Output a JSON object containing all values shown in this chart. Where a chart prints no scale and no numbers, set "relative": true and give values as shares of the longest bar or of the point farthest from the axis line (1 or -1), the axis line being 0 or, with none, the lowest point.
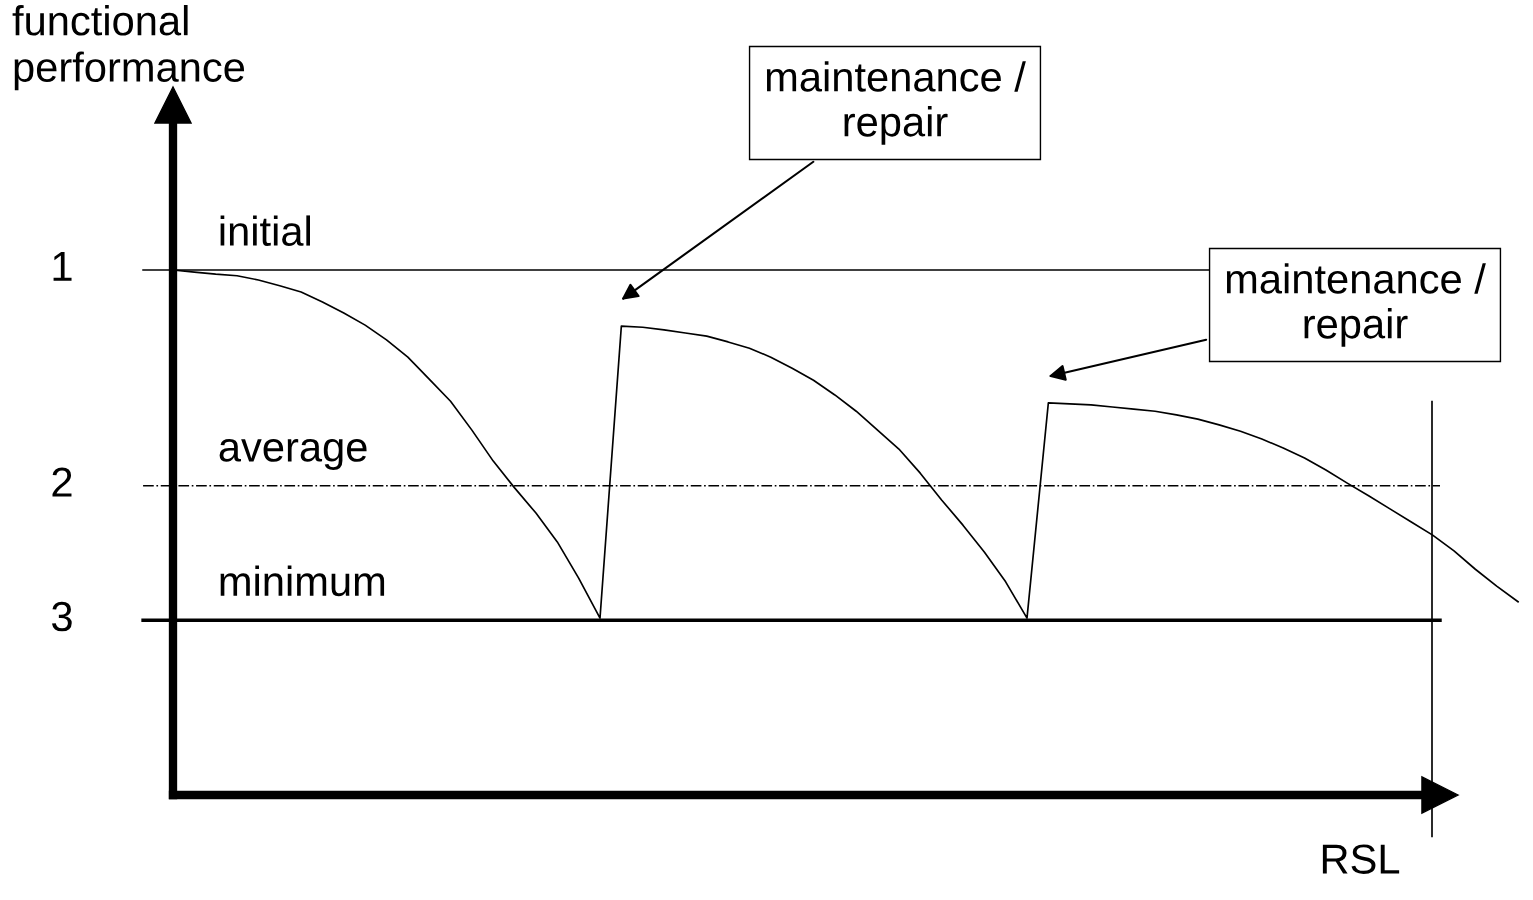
{
  "chart_data": {
    "type": "line",
    "relative": true,
    "ylabel": "functional performance",
    "xlabel": "RSL",
    "categories": [
      null,
      null,
      null,
      null,
      null,
      null,
      null,
      null,
      null,
      null,
      null,
      null,
      null,
      null,
      null,
      null,
      null,
      null,
      null,
      null,
      null,
      null,
      null,
      null,
      null,
      null,
      null,
      null,
      null,
      null,
      null,
      null,
      null,
      null,
      null,
      null,
      null,
      null,
      null,
      null,
      null,
      null,
      null,
      null,
      null,
      null,
      null,
      null,
      null,
      null,
      null,
      null,
      null,
      null,
      null,
      null,
      null,
      null,
      null,
      null,
      null,
      null,
      null,
      null
    ],
    "series": [
      {
        "color": "#000000",
        "values": [
          1.0,
          0.996,
          0.992,
          0.989,
          0.981,
          0.97,
          0.958,
          0.939,
          0.918,
          0.895,
          0.867,
          0.834,
          0.792,
          0.75,
          0.695,
          0.636,
          0.585,
          0.537,
          0.482,
          0.413,
          0.337,
          0.893,
          0.891,
          0.886,
          0.88,
          0.874,
          0.863,
          0.851,
          0.834,
          0.813,
          0.79,
          0.762,
          0.731,
          0.695,
          0.659,
          0.613,
          0.562,
          0.514,
          0.463,
          0.406,
          0.337,
          0.747,
          0.745,
          0.743,
          0.739,
          0.735,
          0.731,
          0.724,
          0.716,
          0.705,
          0.693,
          0.678,
          0.661,
          0.642,
          0.619,
          0.594,
          0.57,
          0.545,
          0.52,
          0.495,
          0.465,
          0.43,
          0.398,
          0.368
        ]
      }
    ],
    "ref_lines": [
      {
        "axis": "y",
        "value": 1.0,
        "label": "initial",
        "color": "#000000",
        "line_style": "solid"
      },
      {
        "axis": "y",
        "value": 0.589,
        "label": "average",
        "color": "#000000",
        "line_style": "dashdot"
      },
      {
        "axis": "y",
        "value": 0.333,
        "label": "minimum",
        "color": "#000000",
        "line_style": "solid"
      }
    ],
    "annotations": [
      "1",
      "2",
      "3",
      "maintenance /\nrepair",
      "maintenance /\nrepair"
    ],
    "grid": false,
    "legend": false,
    "marker": "none",
    "line_style": "solid"
  }
}
